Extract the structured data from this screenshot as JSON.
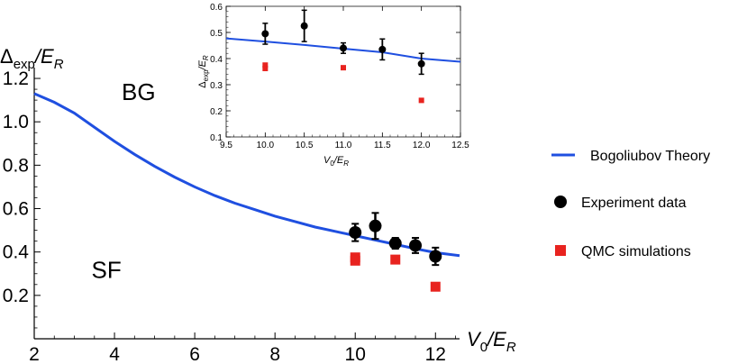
{
  "chart_data": [
    {
      "id": "main",
      "type": "line+scatter",
      "title": "",
      "xlabel": {
        "base": "V",
        "sub": "0",
        "slash": "/",
        "var": "E",
        "varsub": "R"
      },
      "ylabel": {
        "base": "Δ",
        "sub": "exp",
        "slash": "/",
        "var": "E",
        "varsub": "R"
      },
      "xlim": [
        2,
        12.6
      ],
      "ylim": [
        0,
        1.25
      ],
      "xticks": [
        2,
        4,
        6,
        8,
        10,
        12
      ],
      "yticks": [
        0.2,
        0.4,
        0.6,
        0.8,
        1.0,
        1.2
      ],
      "ytick_labels": [
        "0.2",
        "0.4",
        "0.6",
        "0.8",
        "1.0",
        "1.2"
      ],
      "xtick_labels": [
        "2",
        "4",
        "6",
        "8",
        "10",
        "12"
      ],
      "region_labels": [
        {
          "text": "BG",
          "x": 4.6,
          "y": 1.1
        },
        {
          "text": "SF",
          "x": 3.8,
          "y": 0.28
        }
      ],
      "series": [
        {
          "name": "Bogoliubov Theory",
          "kind": "line",
          "color": "#1f4fe0",
          "x": [
            2.0,
            2.5,
            3.0,
            3.5,
            4.0,
            4.5,
            5.0,
            5.5,
            6.0,
            6.5,
            7.0,
            7.5,
            8.0,
            8.5,
            9.0,
            9.5,
            10.0,
            10.5,
            11.0,
            11.5,
            12.0,
            12.6
          ],
          "y": [
            1.13,
            1.09,
            1.04,
            0.975,
            0.91,
            0.85,
            0.795,
            0.745,
            0.7,
            0.66,
            0.625,
            0.595,
            0.565,
            0.54,
            0.515,
            0.495,
            0.475,
            0.455,
            0.435,
            0.415,
            0.397,
            0.383
          ]
        },
        {
          "name": "Experiment data",
          "kind": "scatter-errorbar",
          "marker": "circle",
          "color": "#000000",
          "x": [
            10.0,
            10.5,
            11.0,
            11.5,
            12.0
          ],
          "y": [
            0.49,
            0.52,
            0.44,
            0.43,
            0.38
          ],
          "yerr": [
            0.04,
            0.06,
            0.025,
            0.035,
            0.04
          ]
        },
        {
          "name": "QMC simulations",
          "kind": "scatter",
          "marker": "square",
          "color": "#e8231f",
          "x": [
            10.0,
            10.0,
            11.0,
            12.0
          ],
          "y": [
            0.375,
            0.36,
            0.365,
            0.24
          ]
        }
      ]
    },
    {
      "id": "inset",
      "type": "line+scatter",
      "title": "",
      "xlabel": {
        "base": "V",
        "sub": "0",
        "slash": "/",
        "var": "E",
        "varsub": "R"
      },
      "ylabel": {
        "base": "Δ",
        "sub": "exp",
        "slash": "/",
        "var": "E",
        "varsub": "R"
      },
      "xlim": [
        9.5,
        12.5
      ],
      "ylim": [
        0.1,
        0.6
      ],
      "xticks": [
        9.5,
        10.0,
        10.5,
        11.0,
        11.5,
        12.0,
        12.5
      ],
      "xtick_labels": [
        "9.5",
        "10.0",
        "10.5",
        "11.0",
        "11.5",
        "12.0",
        "12.5"
      ],
      "yticks": [
        0.1,
        0.2,
        0.3,
        0.4,
        0.5,
        0.6
      ],
      "ytick_labels": [
        "0.1",
        "0.2",
        "0.3",
        "0.4",
        "0.5",
        "0.6"
      ],
      "series": [
        {
          "name": "Bogoliubov Theory",
          "kind": "line",
          "color": "#1f4fe0",
          "x": [
            9.5,
            10.0,
            10.5,
            11.0,
            11.5,
            12.0,
            12.5
          ],
          "y": [
            0.477,
            0.465,
            0.452,
            0.438,
            0.424,
            0.4,
            0.388
          ]
        },
        {
          "name": "Experiment data",
          "kind": "scatter-errorbar",
          "marker": "circle",
          "color": "#000000",
          "x": [
            10.0,
            10.5,
            11.0,
            11.5,
            12.0
          ],
          "y": [
            0.495,
            0.525,
            0.44,
            0.435,
            0.38
          ],
          "yerr": [
            0.04,
            0.06,
            0.02,
            0.04,
            0.04
          ]
        },
        {
          "name": "QMC simulations",
          "kind": "scatter",
          "marker": "square",
          "color": "#e8231f",
          "x": [
            10.0,
            10.0,
            11.0,
            12.0
          ],
          "y": [
            0.375,
            0.362,
            0.365,
            0.24
          ]
        }
      ]
    }
  ],
  "legend": {
    "position": "right",
    "entries": [
      {
        "label": "Bogoliubov Theory",
        "symbol": "line",
        "color": "#1f4fe0"
      },
      {
        "label": "Experiment data",
        "symbol": "circle",
        "color": "#000000"
      },
      {
        "label": "QMC simulations",
        "symbol": "square",
        "color": "#e8231f"
      }
    ]
  }
}
